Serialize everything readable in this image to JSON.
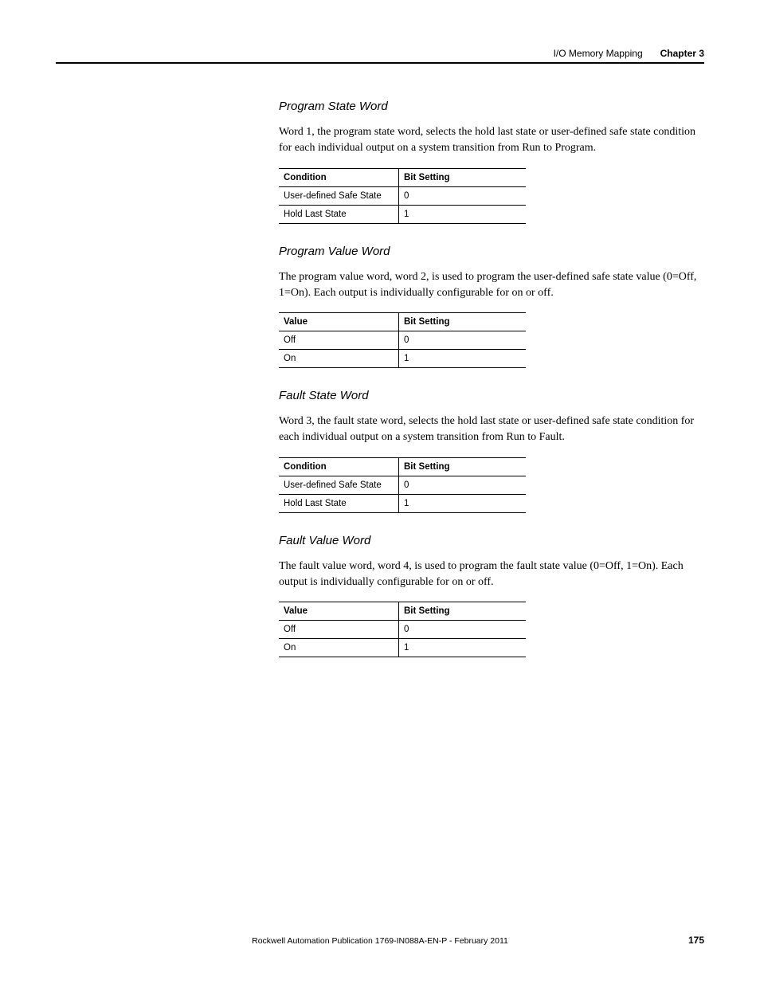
{
  "header": {
    "section": "I/O Memory Mapping",
    "chapter": "Chapter 3"
  },
  "sections": [
    {
      "heading": "Program State Word",
      "body": "Word 1, the program state word, selects the hold last state or user-defined safe state condition for each individual output on a system transition from Run to Program.",
      "table": {
        "col1": "Condition",
        "col2": "Bit Setting",
        "rows": [
          {
            "c1": "User-defined Safe State",
            "c2": "0"
          },
          {
            "c1": "Hold Last State",
            "c2": "1"
          }
        ]
      }
    },
    {
      "heading": "Program Value Word",
      "body": "The program value word, word 2, is used to program the user-defined safe state value (0=Off, 1=On). Each output is individually configurable for on or off.",
      "table": {
        "col1": "Value",
        "col2": "Bit Setting",
        "rows": [
          {
            "c1": "Off",
            "c2": "0"
          },
          {
            "c1": "On",
            "c2": "1"
          }
        ]
      }
    },
    {
      "heading": "Fault State Word",
      "body": "Word 3, the fault state word, selects the hold last state or user-defined safe state condition for each individual output on a system transition from Run to Fault.",
      "table": {
        "col1": "Condition",
        "col2": "Bit Setting",
        "rows": [
          {
            "c1": "User-defined Safe State",
            "c2": "0"
          },
          {
            "c1": "Hold Last State",
            "c2": "1"
          }
        ]
      }
    },
    {
      "heading": "Fault Value Word",
      "body": "The fault value word, word 4, is used to program the fault state value (0=Off, 1=On). Each output is individually configurable for on or off.",
      "table": {
        "col1": "Value",
        "col2": "Bit Setting",
        "rows": [
          {
            "c1": "Off",
            "c2": "0"
          },
          {
            "c1": "On",
            "c2": "1"
          }
        ]
      }
    }
  ],
  "footer": {
    "publication": "Rockwell Automation Publication 1769-IN088A-EN-P - February 2011",
    "page": "175"
  }
}
